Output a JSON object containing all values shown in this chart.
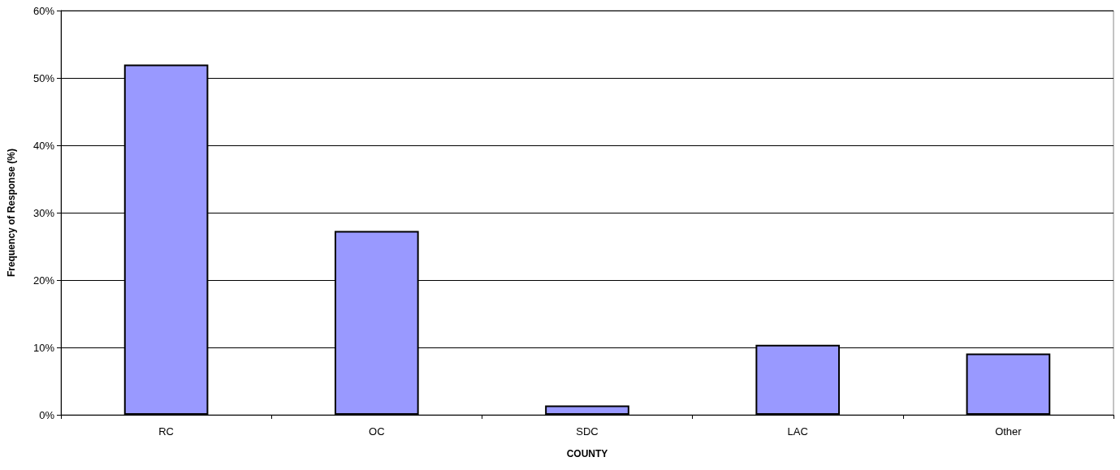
{
  "chart_data": {
    "type": "bar",
    "xlabel": "COUNTY",
    "ylabel": "Frequency of Response (%)",
    "categories": [
      "RC",
      "OC",
      "SDC",
      "LAC",
      "Other"
    ],
    "values": [
      52.0,
      27.3,
      1.4,
      10.4,
      9.1
    ],
    "color": "#9999ff",
    "ylim": [
      0,
      60
    ],
    "yticks": [
      {
        "value": 0,
        "label": "0%"
      },
      {
        "value": 10,
        "label": "10%"
      },
      {
        "value": 20,
        "label": "20%"
      },
      {
        "value": 30,
        "label": "30%"
      },
      {
        "value": 40,
        "label": "40%"
      },
      {
        "value": 50,
        "label": "50%"
      },
      {
        "value": 60,
        "label": "60%"
      }
    ],
    "grid": "y"
  }
}
